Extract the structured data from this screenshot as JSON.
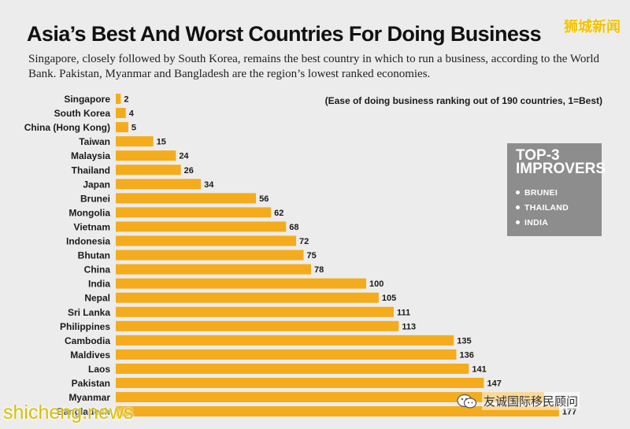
{
  "header": {
    "title": "Asia’s Best And Worst Countries For Doing Business",
    "subtitle": "Singapore, closely followed by South Korea, remains the best country in which to run a business, according to the World Bank. Pakistan, Myanmar and Bangladesh are the region’s lowest ranked economies.",
    "note": "(Ease of doing business ranking out of 190 countries, 1=Best)"
  },
  "improvers": {
    "title": "TOP-3\nIMPROVERS",
    "items": [
      "BRUNEI",
      "THAILAND",
      "INDIA"
    ]
  },
  "watermarks": {
    "top_right": "狮城新闻",
    "bottom_left": "shicheng.news",
    "bottom_right": "友诚国际移民顾问"
  },
  "colors": {
    "bar": "#f4ac1c",
    "background": "#ececec",
    "box": "#8d8d8d"
  },
  "chart_data": {
    "type": "bar",
    "orientation": "horizontal",
    "categories": [
      "Singapore",
      "South Korea",
      "China (Hong Kong)",
      "Taiwan",
      "Malaysia",
      "Thailand",
      "Japan",
      "Brunei",
      "Mongolia",
      "Vietnam",
      "Indonesia",
      "Bhutan",
      "China",
      "India",
      "Nepal",
      "Sri Lanka",
      "Philippines",
      "Cambodia",
      "Maldives",
      "Laos",
      "Pakistan",
      "Myanmar",
      "Bangladesh"
    ],
    "values": [
      2,
      4,
      5,
      15,
      24,
      26,
      34,
      56,
      62,
      68,
      72,
      75,
      78,
      100,
      105,
      111,
      113,
      135,
      136,
      141,
      147,
      171,
      177
    ],
    "value_labels": [
      "2",
      "4",
      "5",
      "15",
      "24",
      "26",
      "34",
      "56",
      "62",
      "68",
      "72",
      "75",
      "78",
      "100",
      "105",
      "111",
      "113",
      "135",
      "136",
      "141",
      "147",
      "",
      "177"
    ],
    "xlim": [
      0,
      190
    ],
    "grid": false,
    "legend": "none"
  }
}
